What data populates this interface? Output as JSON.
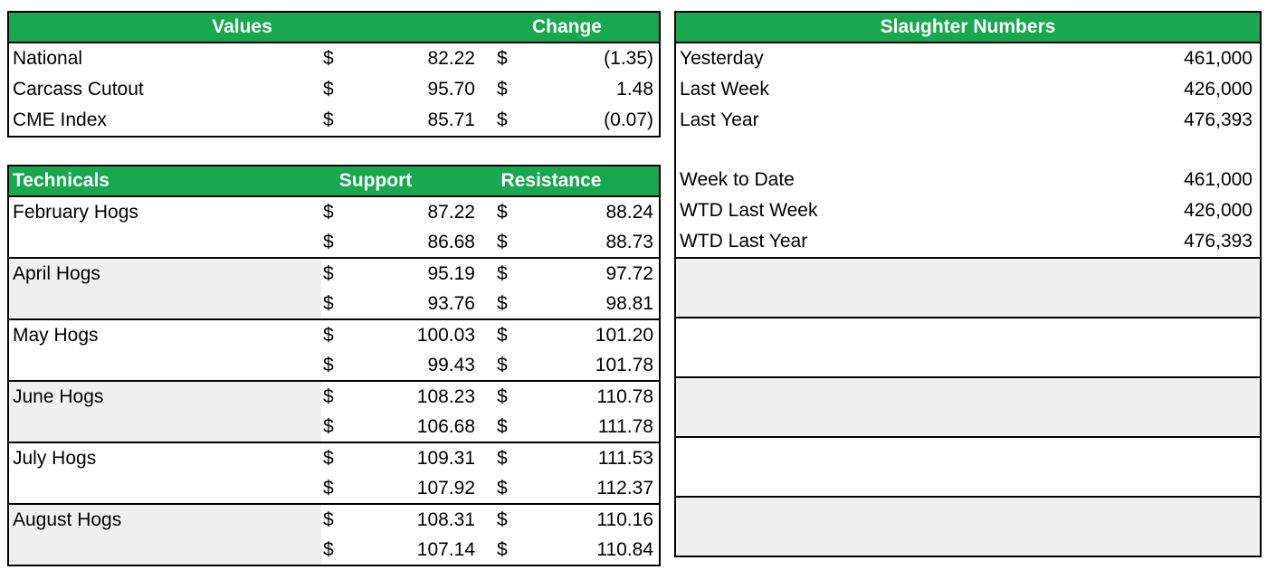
{
  "symbols": {
    "currency": "$"
  },
  "colors": {
    "header_green": "#19A850",
    "band_gray": "#F0F0EE",
    "border": "#000000"
  },
  "values": {
    "header": {
      "title": "Values",
      "change_label": "Change"
    },
    "rows": [
      {
        "label": "National",
        "value": "82.22",
        "change": "(1.35)"
      },
      {
        "label": "Carcass Cutout",
        "value": "95.70",
        "change": "1.48"
      },
      {
        "label": "CME Index",
        "value": "85.71",
        "change": "(0.07)"
      }
    ]
  },
  "technicals": {
    "header": {
      "title": "Technicals",
      "support_label": "Support",
      "resistance_label": "Resistance"
    },
    "groups": [
      {
        "label": "February Hogs",
        "rows": [
          {
            "support": "87.22",
            "resistance": "88.24"
          },
          {
            "support": "86.68",
            "resistance": "88.73"
          }
        ]
      },
      {
        "label": "April Hogs",
        "rows": [
          {
            "support": "95.19",
            "resistance": "97.72"
          },
          {
            "support": "93.76",
            "resistance": "98.81"
          }
        ]
      },
      {
        "label": "May Hogs",
        "rows": [
          {
            "support": "100.03",
            "resistance": "101.20"
          },
          {
            "support": "99.43",
            "resistance": "101.78"
          }
        ]
      },
      {
        "label": "June Hogs",
        "rows": [
          {
            "support": "108.23",
            "resistance": "110.78"
          },
          {
            "support": "106.68",
            "resistance": "111.78"
          }
        ]
      },
      {
        "label": "July Hogs",
        "rows": [
          {
            "support": "109.31",
            "resistance": "111.53"
          },
          {
            "support": "107.92",
            "resistance": "112.37"
          }
        ]
      },
      {
        "label": "August Hogs",
        "rows": [
          {
            "support": "108.31",
            "resistance": "110.16"
          },
          {
            "support": "107.14",
            "resistance": "110.84"
          }
        ]
      }
    ]
  },
  "slaughter": {
    "header": "Slaughter Numbers",
    "rows": [
      {
        "label": "Yesterday",
        "value": "461,000"
      },
      {
        "label": "Last Week",
        "value": "426,000"
      },
      {
        "label": "Last Year",
        "value": "476,393"
      },
      {
        "label": "Week to Date",
        "value": "461,000"
      },
      {
        "label": "WTD Last Week",
        "value": "426,000"
      },
      {
        "label": "WTD Last Year",
        "value": "476,393"
      }
    ]
  }
}
